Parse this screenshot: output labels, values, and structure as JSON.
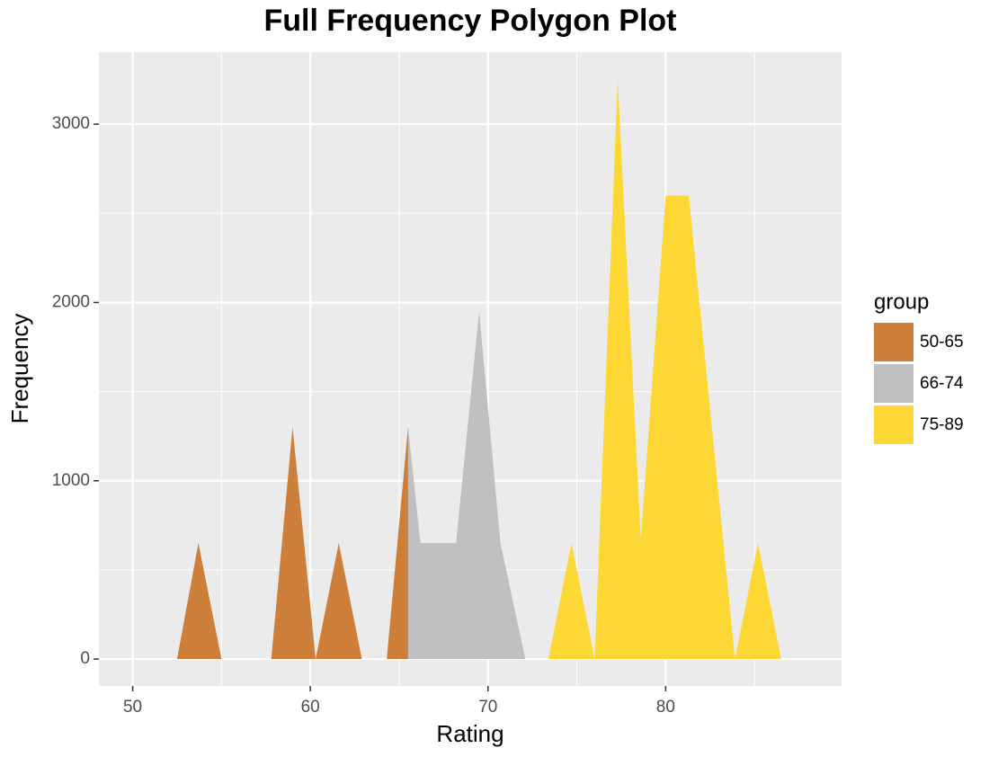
{
  "chart_data": {
    "type": "area",
    "title": "Full Frequency Polygon Plot",
    "x_label": "Rating",
    "y_label": "Frequency",
    "legend_title": "group",
    "legend_position": "right",
    "grid": true,
    "minor_grid": true,
    "xlim": [
      48.1,
      89.9
    ],
    "ylim": [
      -151,
      3404
    ],
    "xticks": [
      50,
      60,
      70,
      80
    ],
    "yticks": [
      0,
      1000,
      2000,
      3000
    ],
    "series": [
      {
        "name": "50-65",
        "color": "#cd7f3a",
        "x": [
          52.5,
          53.7,
          55.0,
          57.8,
          59.0,
          60.3,
          61.6,
          62.9,
          64.3,
          65.5,
          66.8
        ],
        "values": [
          0,
          650,
          0,
          0,
          1300,
          0,
          650,
          0,
          0,
          1300,
          0
        ]
      },
      {
        "name": "66-74",
        "color": "#c0c0c0",
        "x": [
          65.5,
          66.2,
          68.2,
          69.5,
          70.7,
          72.1
        ],
        "values": [
          1300,
          650,
          650,
          1950,
          650,
          0
        ]
      },
      {
        "name": "75-89",
        "color": "#fdd835",
        "x": [
          73.4,
          74.7,
          76.0,
          77.3,
          78.6,
          80.0,
          81.3,
          83.9,
          85.2,
          86.5
        ],
        "values": [
          0,
          650,
          0,
          3250,
          670,
          2600,
          2600,
          0,
          650,
          0
        ]
      }
    ]
  }
}
